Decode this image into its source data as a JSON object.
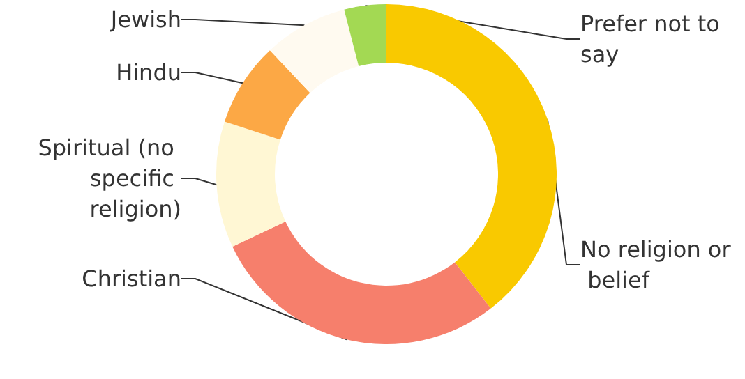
{
  "chart_data": {
    "type": "donut",
    "categories": [
      "No religion or belief",
      "Christian",
      "Spiritual (no specific religion)",
      "Hindu",
      "Jewish",
      "Prefer not to say"
    ],
    "values": [
      39.5,
      28.5,
      12,
      8,
      8,
      4
    ],
    "colors": [
      "#f9c900",
      "#f67f6c",
      "#fff7d4",
      "#fca845",
      "#fffaf0",
      "#a3d953"
    ],
    "legend": false
  }
}
